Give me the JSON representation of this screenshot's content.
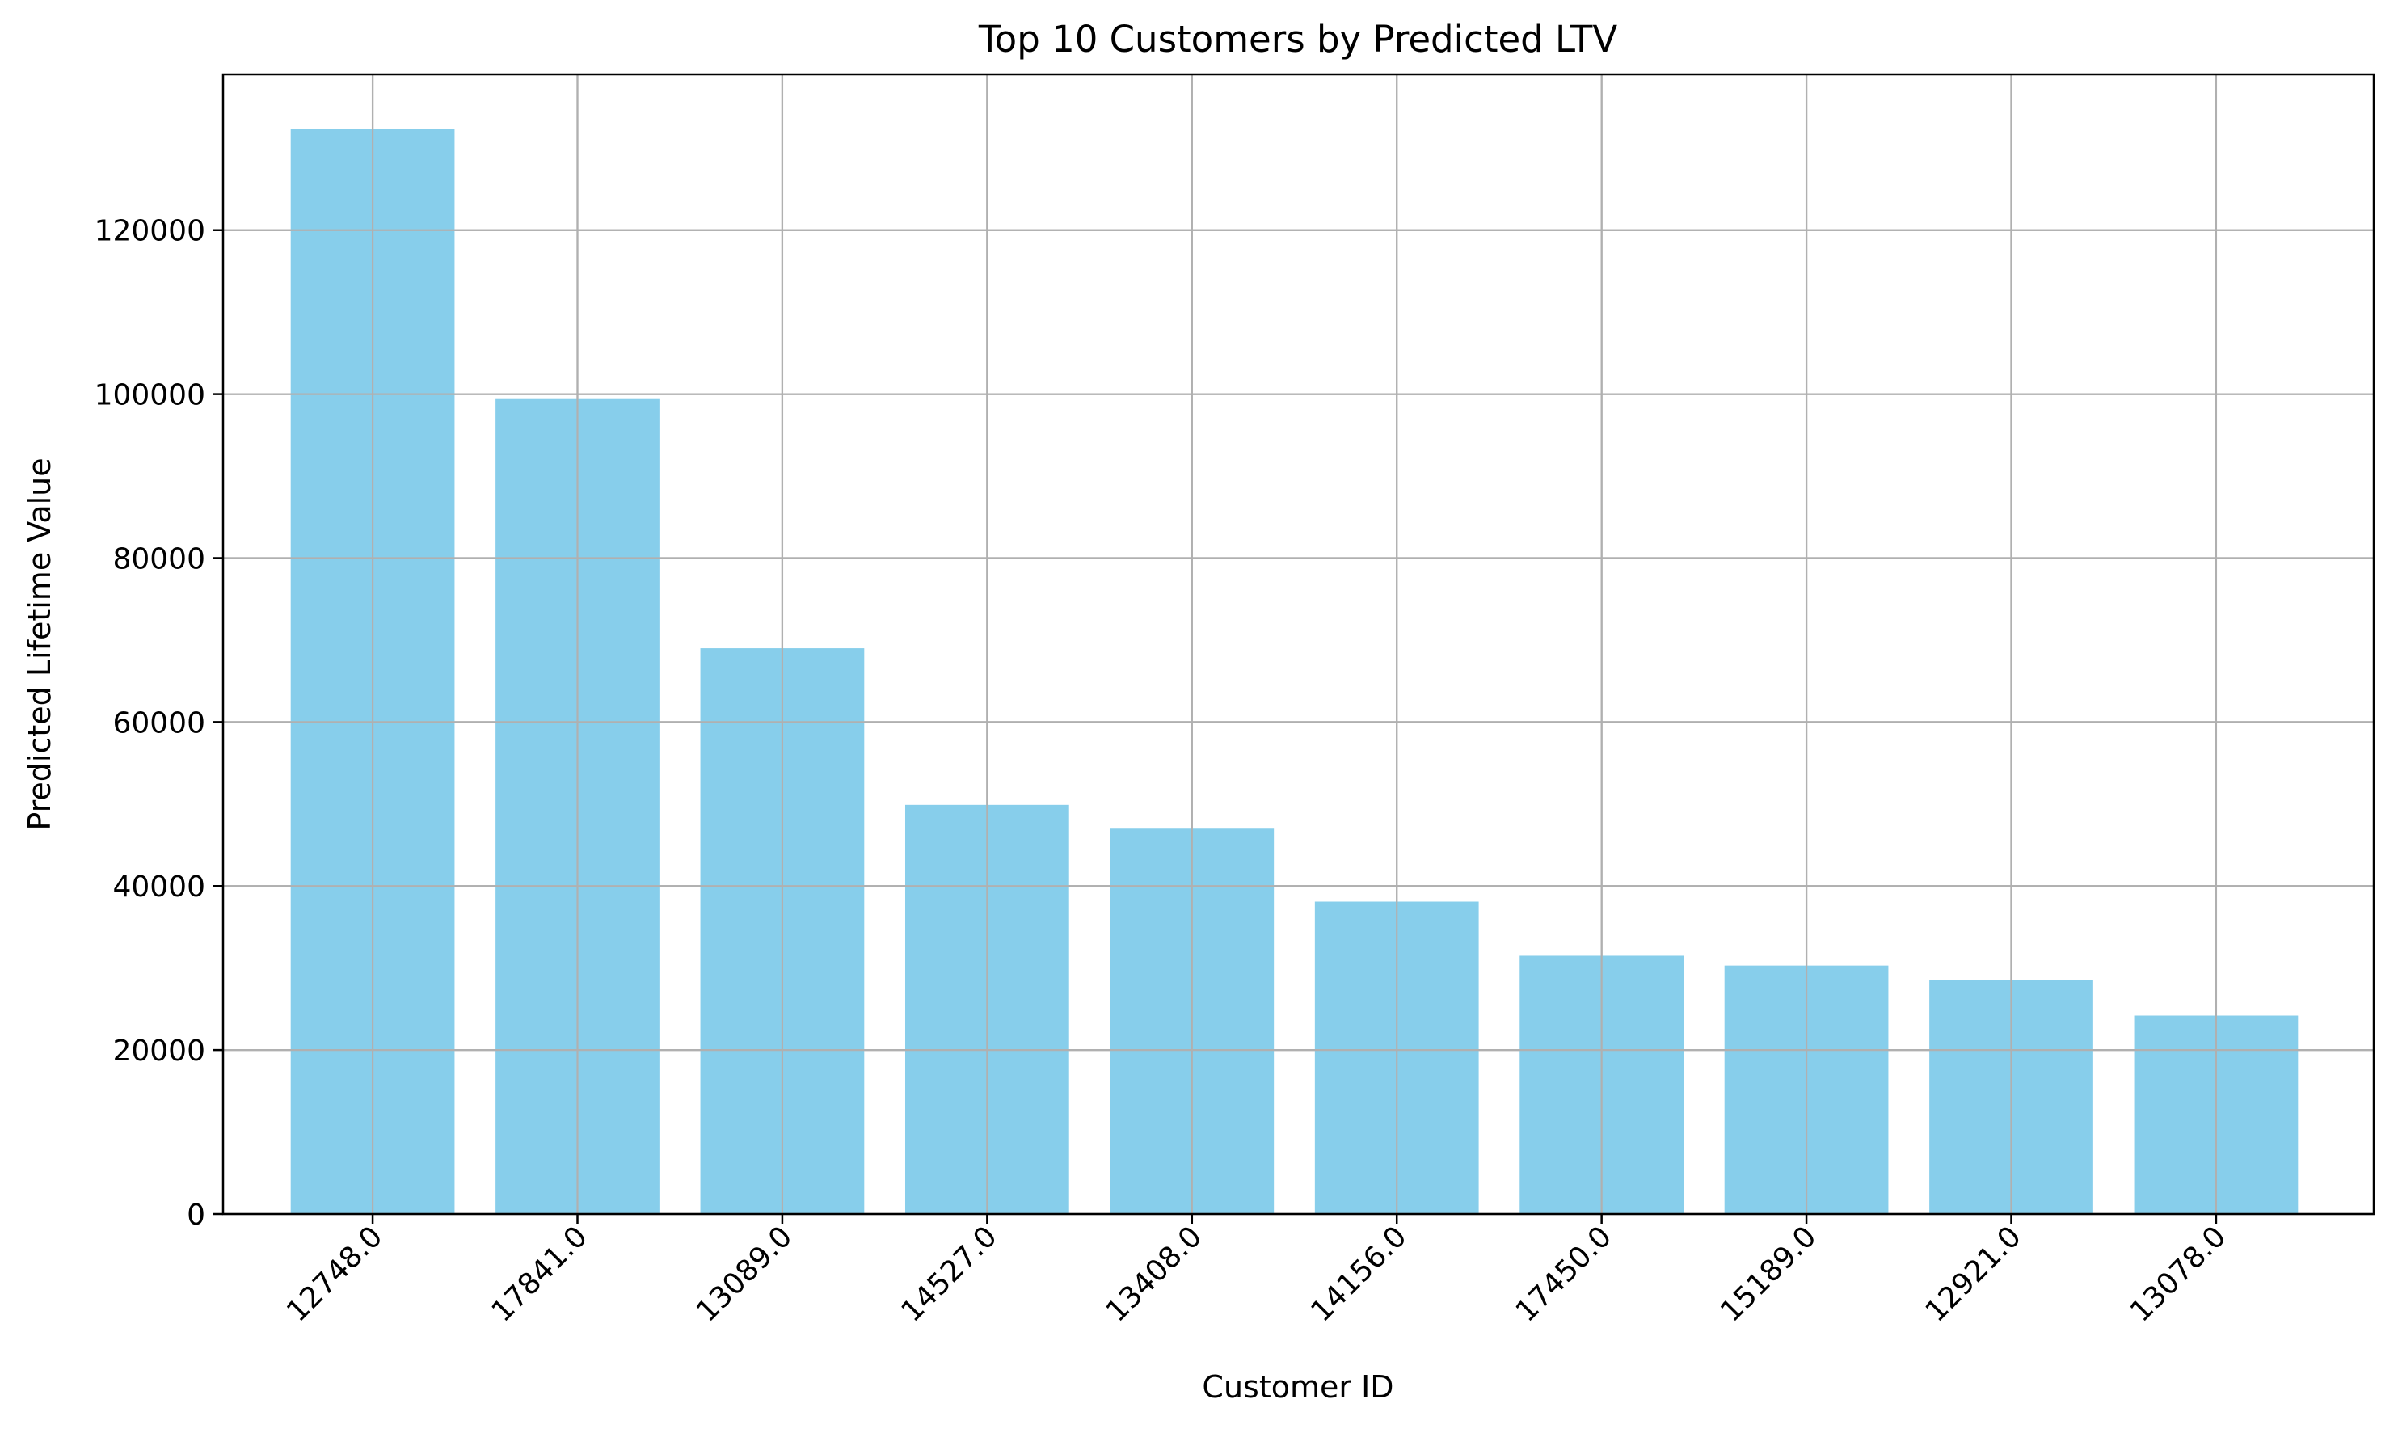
{
  "chart_data": {
    "type": "bar",
    "title": "Top 10 Customers by Predicted LTV",
    "xlabel": "Customer ID",
    "ylabel": "Predicted Lifetime Value",
    "categories": [
      "12748.0",
      "17841.0",
      "13089.0",
      "14527.0",
      "13408.0",
      "14156.0",
      "17450.0",
      "15189.0",
      "12921.0",
      "13078.0"
    ],
    "values": [
      132300,
      99400,
      69000,
      49900,
      47000,
      38100,
      31500,
      30300,
      28500,
      24200
    ],
    "ylim": [
      0,
      139000
    ],
    "yticks": [
      0,
      20000,
      40000,
      60000,
      80000,
      100000,
      120000
    ],
    "grid": true,
    "bar_color": "#87ceeb",
    "xtick_rotation": 45
  }
}
